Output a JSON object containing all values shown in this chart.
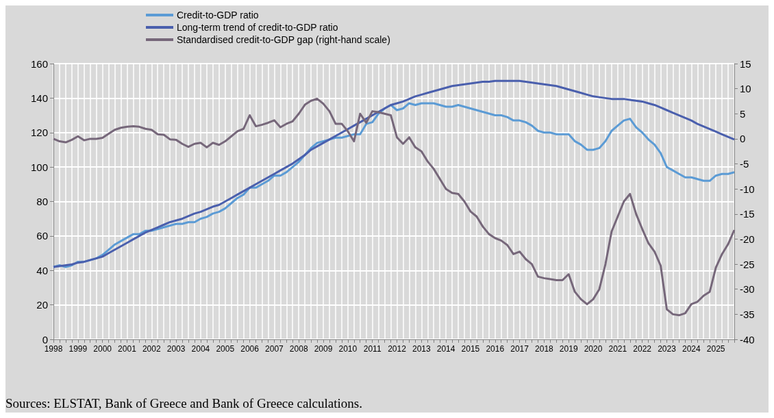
{
  "chart_data": {
    "type": "line",
    "categories": [
      "1998",
      null,
      null,
      null,
      "1999",
      null,
      null,
      null,
      "2000",
      null,
      null,
      null,
      "2001",
      null,
      null,
      null,
      "2002",
      null,
      null,
      null,
      "2003",
      null,
      null,
      null,
      "2004",
      null,
      null,
      null,
      "2005",
      null,
      null,
      null,
      "2006",
      null,
      null,
      null,
      "2007",
      null,
      null,
      null,
      "2008",
      null,
      null,
      null,
      "2009",
      null,
      null,
      null,
      "2010",
      null,
      null,
      null,
      "2011",
      null,
      null,
      null,
      "2012",
      null,
      null,
      null,
      "2013",
      null,
      null,
      null,
      "2014",
      null,
      null,
      null,
      "2015",
      null,
      null,
      null,
      "2016",
      null,
      null,
      null,
      "2017",
      null,
      null,
      null,
      "2018",
      null,
      null,
      null,
      "2019",
      null,
      null,
      null,
      "2020",
      null,
      null,
      null,
      "2021",
      null,
      null,
      null,
      "2022",
      null,
      null,
      null,
      "2023",
      null,
      null,
      null,
      "2024",
      null,
      null,
      null,
      "2025",
      null,
      null,
      null
    ],
    "series": [
      {
        "name": "Credit-to-GDP ratio",
        "color": "#5b9bd5",
        "values": [
          42,
          43,
          42,
          43,
          45,
          45,
          46,
          47,
          49,
          52,
          55,
          57,
          59,
          61,
          61,
          63,
          63,
          64,
          65,
          66,
          67,
          67,
          68,
          68,
          70,
          71,
          73,
          74,
          76,
          79,
          82,
          84,
          88,
          88,
          90,
          92,
          95,
          95,
          97,
          100,
          103,
          107,
          111,
          114,
          115,
          116,
          117,
          117,
          118,
          119,
          119,
          125,
          126,
          131,
          134,
          136,
          133,
          134,
          137,
          136,
          137,
          137,
          137,
          136,
          135,
          135,
          136,
          135,
          134,
          133,
          132,
          131,
          130,
          130,
          129,
          127,
          127,
          126,
          124,
          121,
          120,
          120,
          119,
          119,
          119,
          115,
          113,
          110,
          110,
          111,
          115,
          121,
          124,
          127,
          128,
          123,
          120,
          116,
          113,
          108,
          100,
          98,
          96,
          94,
          94,
          93,
          92,
          92,
          95,
          96,
          96,
          97
        ]
      },
      {
        "name": "Long-term trend of credit-to-GDP ratio",
        "color": "#4a5fad",
        "values": [
          42,
          42.5,
          43,
          43.5,
          44.5,
          45,
          46,
          47,
          48,
          50,
          52,
          54,
          56,
          58,
          60,
          62,
          63.5,
          65,
          66.5,
          68,
          69,
          70,
          71.5,
          73,
          74,
          75.5,
          77,
          78,
          80,
          82,
          84,
          86,
          88,
          90,
          92,
          94,
          96,
          98,
          100,
          102,
          104.5,
          107,
          110,
          112,
          114,
          116,
          118,
          120,
          122,
          124,
          126,
          128,
          130,
          132,
          134,
          136,
          137,
          138,
          139.5,
          141,
          142,
          143,
          144,
          145,
          146,
          147,
          147.5,
          148,
          148.5,
          149,
          149.5,
          149.5,
          150,
          150,
          150,
          150,
          150,
          149.5,
          149,
          148.5,
          148,
          147.5,
          147,
          146,
          145,
          144,
          143,
          142,
          141,
          140.5,
          140,
          139.5,
          139.5,
          139.5,
          139,
          138.5,
          138,
          137,
          136,
          134.5,
          133,
          131.5,
          130,
          128.5,
          127,
          125,
          123.5,
          122,
          120.5,
          119,
          117.5,
          116
        ]
      },
      {
        "name": "Standardised credit-to-GDP gap (right-hand scale)",
        "color": "#76677a",
        "axis": "y2",
        "values": [
          0,
          -0.5,
          -0.7,
          -0.2,
          0.5,
          -0.3,
          0,
          0,
          0.2,
          1,
          1.8,
          2.2,
          2.4,
          2.5,
          2.4,
          2,
          1.8,
          0.9,
          0.8,
          -0.1,
          -0.2,
          -1,
          -1.6,
          -1,
          -0.8,
          -1.7,
          -0.8,
          -1.2,
          -0.5,
          0.5,
          1.5,
          2,
          4.7,
          2.5,
          2.8,
          3.2,
          3.7,
          2.3,
          3,
          3.5,
          5,
          6.8,
          7.6,
          8,
          7,
          5.5,
          3,
          3,
          1.5,
          -0.5,
          5,
          3.2,
          5.5,
          5.3,
          5,
          4.7,
          0.3,
          -1,
          0.3,
          -1.7,
          -2.5,
          -4.5,
          -6,
          -8,
          -10,
          -10.8,
          -11,
          -12.5,
          -14.5,
          -15.5,
          -17.5,
          -19,
          -19.8,
          -20.3,
          -21.2,
          -23,
          -22.5,
          -24,
          -25,
          -27.5,
          -27.8,
          -28,
          -28.2,
          -28.2,
          -27,
          -30.5,
          -32,
          -33,
          -32,
          -30,
          -25,
          -18.5,
          -15.5,
          -12.5,
          -11,
          -15,
          -18,
          -20.8,
          -22.5,
          -25.3,
          -34,
          -35,
          -35.2,
          -34.8,
          -33,
          -32.5,
          -31.3,
          -30.5,
          -25.7,
          -23,
          -21,
          -18.2
        ]
      }
    ],
    "ylim": [
      0,
      160
    ],
    "yticks": [
      0,
      20,
      40,
      60,
      80,
      100,
      120,
      140,
      160
    ],
    "y2lim": [
      -40,
      15
    ],
    "y2ticks": [
      -40,
      -35,
      -30,
      -25,
      -20,
      -15,
      -10,
      -5,
      0,
      5,
      10,
      15
    ],
    "grid": true,
    "legend": "top left",
    "marker": "none",
    "line_style": "solid",
    "annotations": [
      "Sources: ELSTAT, Bank of Greece and Bank of Greece calculations."
    ]
  }
}
